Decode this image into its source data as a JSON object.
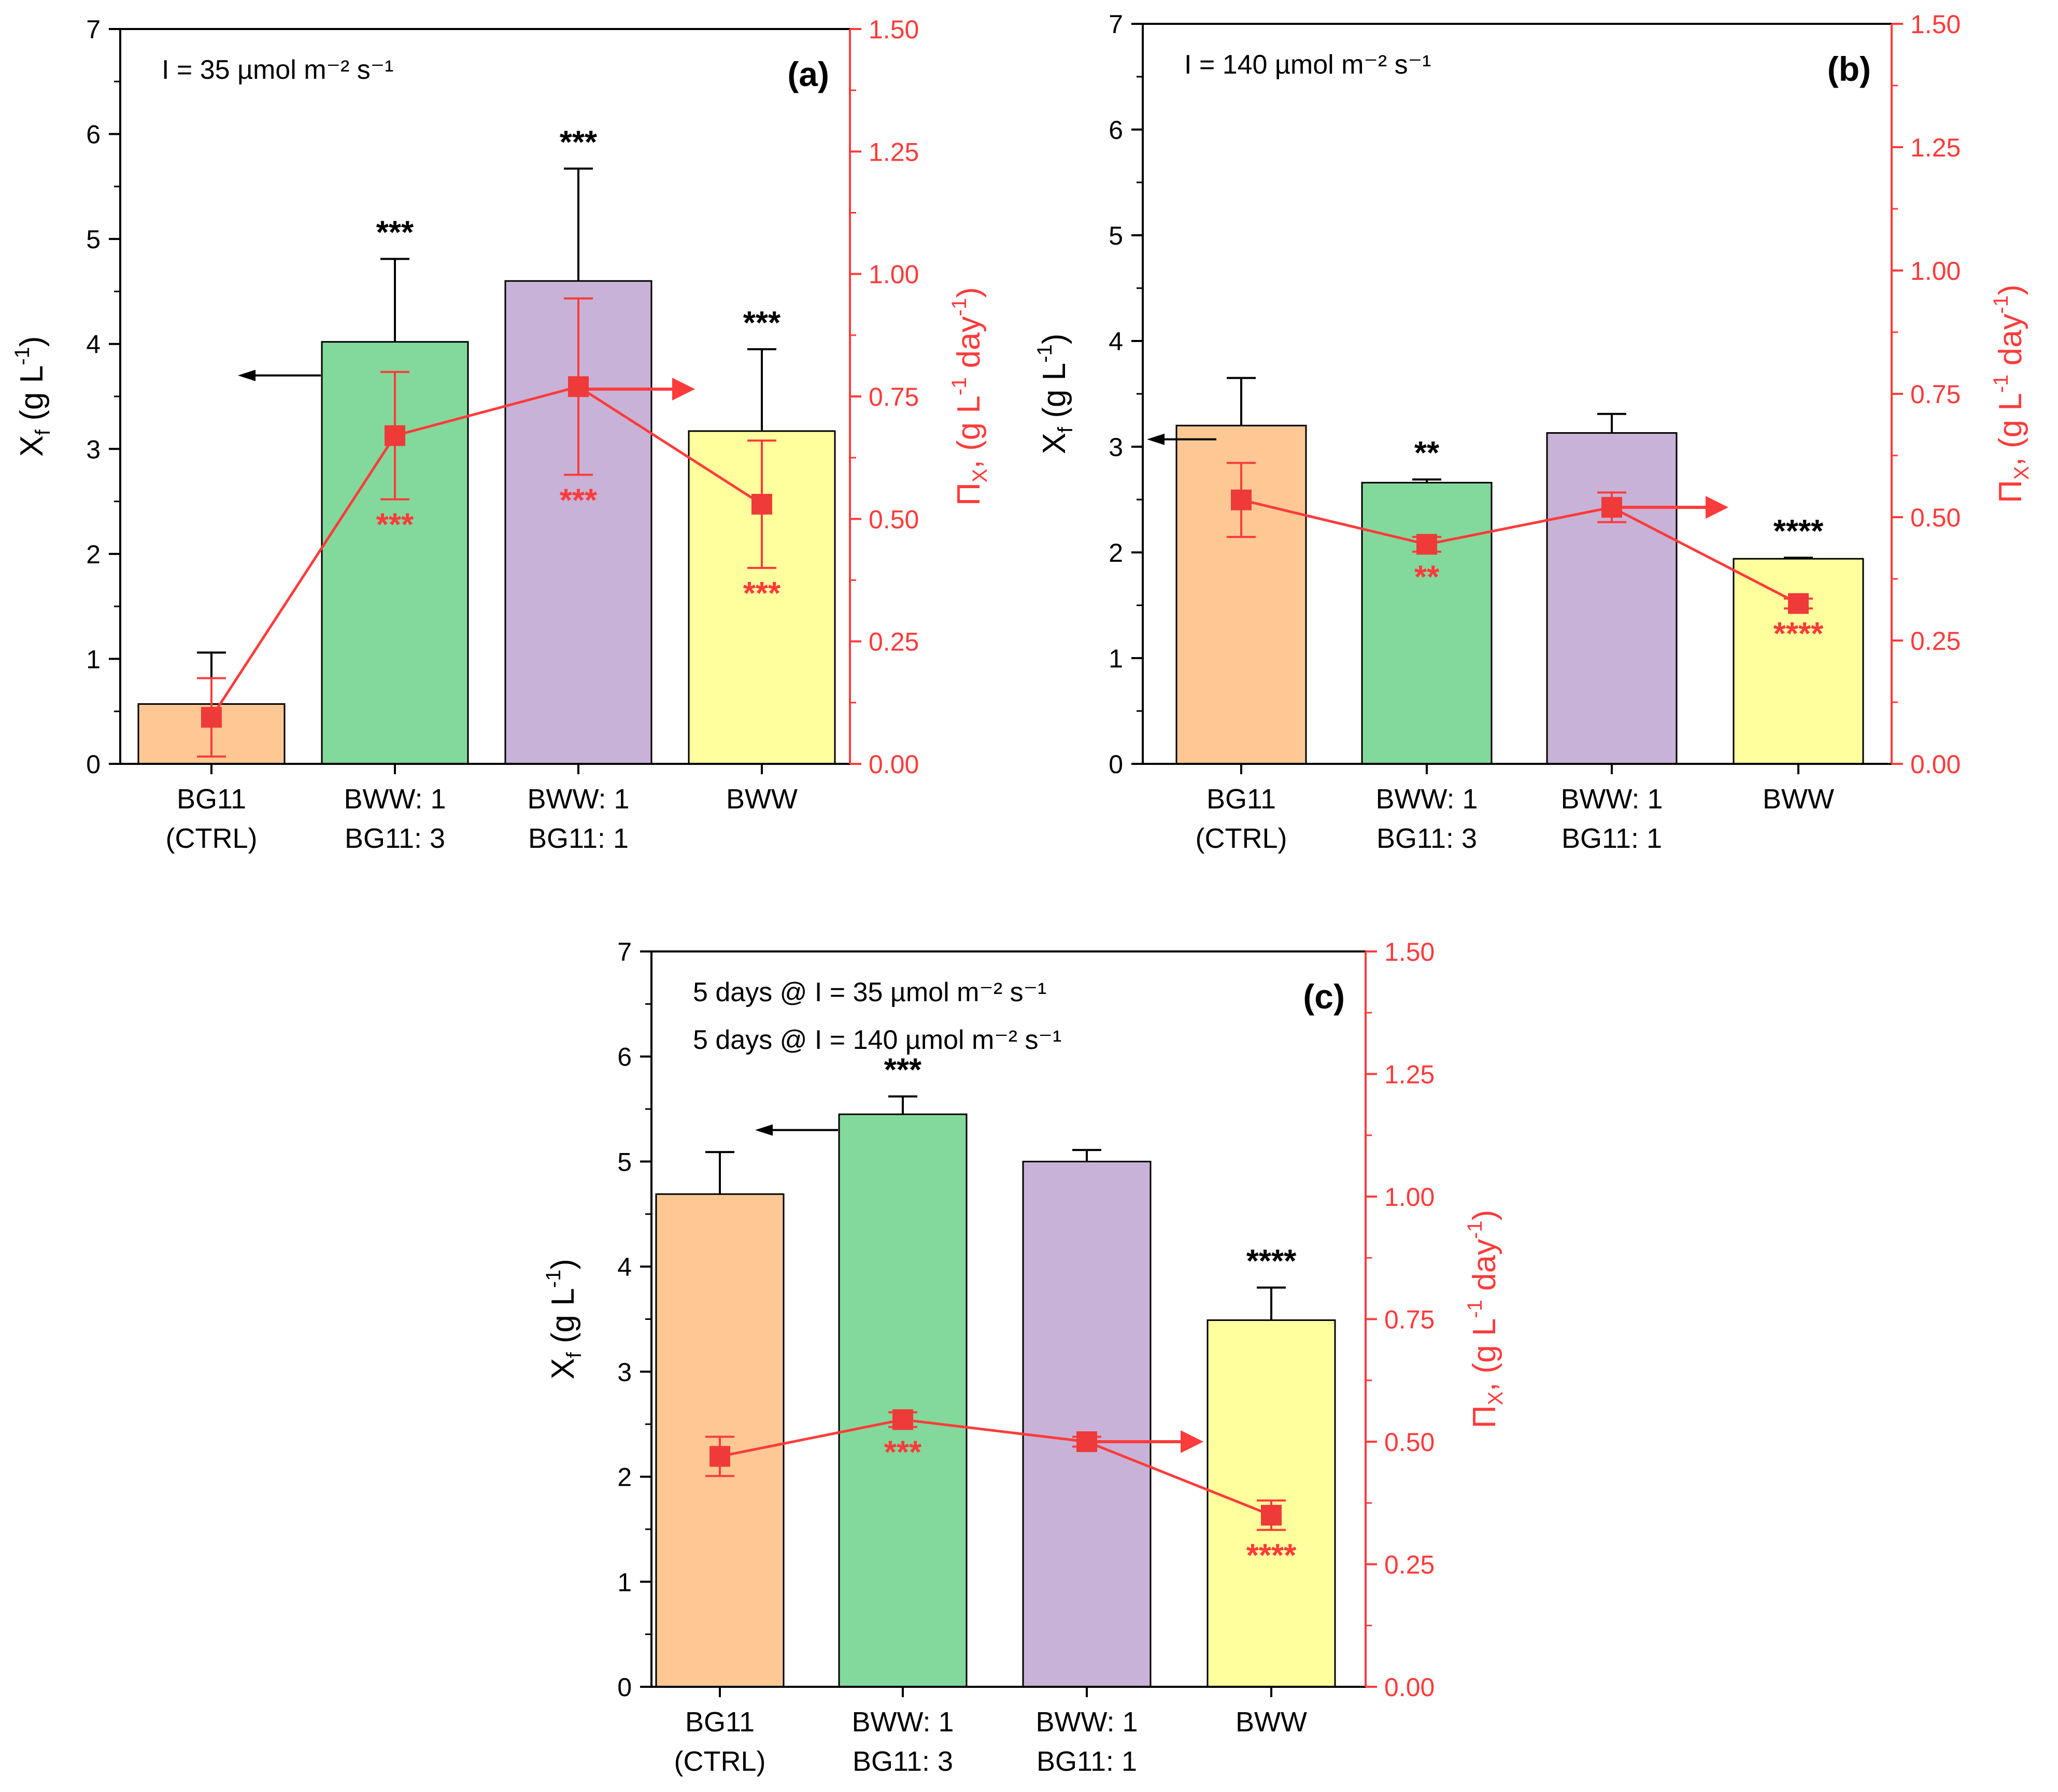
{
  "figure": {
    "line_color": "#ff3b3b",
    "marker_color": "#ef3a3a",
    "bar_colors": [
      "#fdc894",
      "#82d99b",
      "#c8b2d7",
      "#ffff9d"
    ]
  },
  "chart_data": [
    {
      "type": "bar",
      "panel_label": "(a)",
      "annotations": [
        "I = 35 µmol m⁻² s⁻¹"
      ],
      "categories": [
        "BG11\n(CTRL)",
        "BWW: 1\nBG11: 3",
        "BWW: 1\nBG11: 1",
        "BWW"
      ],
      "left_axis": {
        "label": "X",
        "label_sub": "f",
        "label_rest": " (g L",
        "label_sup": "-1",
        "label_end": ")",
        "ylim": [
          0,
          7
        ],
        "ticks": [
          "0",
          "1",
          "2",
          "3",
          "4",
          "5",
          "6",
          "7"
        ]
      },
      "right_axis": {
        "label": "Π",
        "label_sub": "X",
        "label_rest": ", (g L",
        "label_sup1": "-1",
        "label_mid": " day",
        "label_sup2": "-1",
        "label_end": ")",
        "ylim": [
          0,
          1.5
        ],
        "ticks": [
          "0.00",
          "0.25",
          "0.50",
          "0.75",
          "1.00",
          "1.25",
          "1.50"
        ]
      },
      "series": [
        {
          "name": "Xf",
          "axis": "left",
          "values": [
            0.57,
            4.02,
            4.6,
            3.17
          ],
          "errors": [
            0.49,
            0.79,
            1.07,
            0.78
          ],
          "significance": [
            "",
            "***",
            "***",
            "***"
          ]
        },
        {
          "name": "ΠX",
          "axis": "right",
          "values": [
            0.095,
            0.67,
            0.77,
            0.53
          ],
          "errors": [
            0.08,
            0.13,
            0.18,
            0.13
          ],
          "significance": [
            "",
            "***",
            "***",
            "***"
          ]
        }
      ],
      "arrows": {
        "left": {
          "category": 1,
          "value": 3.7
        },
        "right": {
          "category": 2,
          "value": 0.765
        }
      }
    },
    {
      "type": "bar",
      "panel_label": "(b)",
      "annotations": [
        "I = 140 µmol m⁻² s⁻¹"
      ],
      "categories": [
        "BG11\n(CTRL)",
        "BWW: 1\nBG11: 3",
        "BWW: 1\nBG11: 1",
        "BWW"
      ],
      "left_axis": {
        "label": "X",
        "label_sub": "f",
        "label_rest": " (g L",
        "label_sup": "-1",
        "label_end": ")",
        "ylim": [
          0,
          7
        ],
        "ticks": [
          "0",
          "1",
          "2",
          "3",
          "4",
          "5",
          "6",
          "7"
        ]
      },
      "right_axis": {
        "label": "Π",
        "label_sub": "X",
        "label_rest": ", (g L",
        "label_sup1": "-1",
        "label_mid": " day",
        "label_sup2": "-1",
        "label_end": ")",
        "ylim": [
          0,
          1.5
        ],
        "ticks": [
          "0.00",
          "0.25",
          "0.50",
          "0.75",
          "1.00",
          "1.25",
          "1.50"
        ]
      },
      "series": [
        {
          "name": "Xf",
          "axis": "left",
          "values": [
            3.2,
            2.66,
            3.13,
            1.94
          ],
          "errors": [
            0.45,
            0.03,
            0.18,
            0.01
          ],
          "significance": [
            "",
            "**",
            "",
            "****"
          ]
        },
        {
          "name": "ΠX",
          "axis": "right",
          "values": [
            0.535,
            0.445,
            0.52,
            0.325
          ],
          "errors": [
            0.075,
            0.015,
            0.03,
            0.01
          ],
          "significance": [
            "",
            "**",
            "",
            "****"
          ]
        }
      ],
      "arrows": {
        "left": {
          "category": 0,
          "value": 3.07
        },
        "right": {
          "category": 2,
          "value": 0.52
        }
      }
    },
    {
      "type": "bar",
      "panel_label": "(c)",
      "annotations": [
        "5 days @ I = 35 µmol m⁻² s⁻¹",
        "5 days @ I = 140 µmol m⁻² s⁻¹"
      ],
      "categories": [
        "BG11\n(CTRL)",
        "BWW: 1\nBG11: 3",
        "BWW: 1\nBG11: 1",
        "BWW"
      ],
      "left_axis": {
        "label": "X",
        "label_sub": "f",
        "label_rest": " (g L",
        "label_sup": "-1",
        "label_end": ")",
        "ylim": [
          0,
          7
        ],
        "ticks": [
          "0",
          "1",
          "2",
          "3",
          "4",
          "5",
          "6",
          "7"
        ]
      },
      "right_axis": {
        "label": "Π",
        "label_sub": "X",
        "label_rest": ", (g L",
        "label_sup1": "-1",
        "label_mid": " day",
        "label_sup2": "-1",
        "label_end": ")",
        "ylim": [
          0,
          1.5
        ],
        "ticks": [
          "0.00",
          "0.25",
          "0.50",
          "0.75",
          "1.00",
          "1.25",
          "1.50"
        ]
      },
      "series": [
        {
          "name": "Xf",
          "axis": "left",
          "values": [
            4.69,
            5.45,
            5.0,
            3.49
          ],
          "errors": [
            0.4,
            0.17,
            0.11,
            0.31
          ],
          "significance": [
            "",
            "***",
            "",
            "****"
          ]
        },
        {
          "name": "ΠX",
          "axis": "right",
          "values": [
            0.47,
            0.545,
            0.5,
            0.35
          ],
          "errors": [
            0.04,
            0.015,
            0.01,
            0.03
          ],
          "significance": [
            "",
            "***",
            "",
            "****"
          ]
        }
      ],
      "arrows": {
        "left": {
          "category": 1,
          "value": 5.3
        },
        "right": {
          "category": 2,
          "value": 0.5
        }
      }
    }
  ]
}
